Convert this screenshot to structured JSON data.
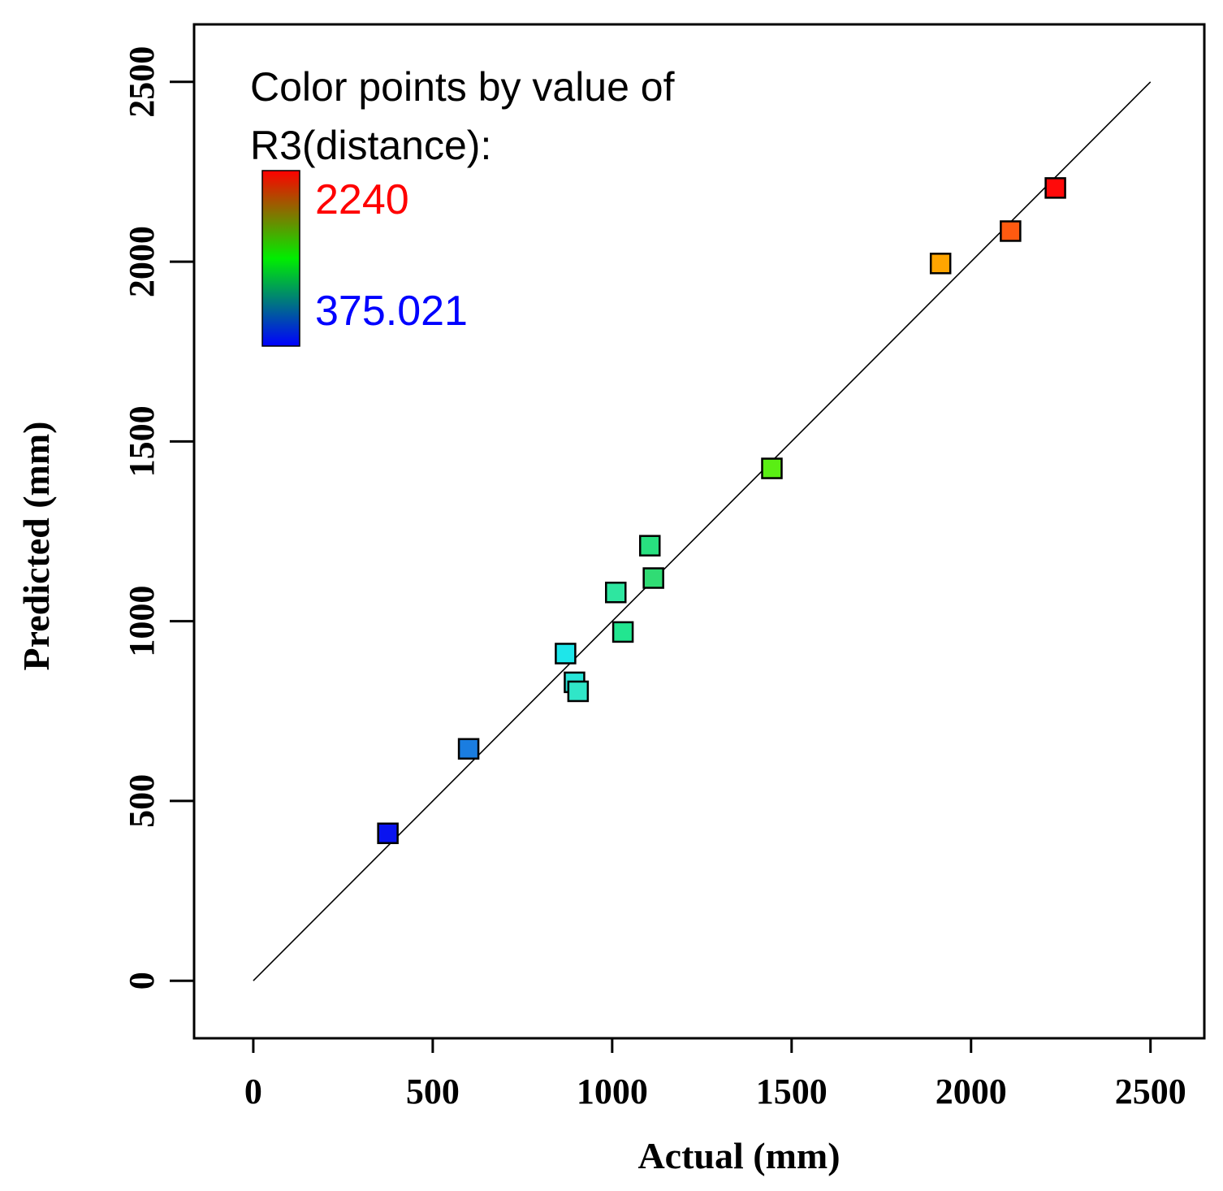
{
  "chart_data": {
    "type": "scatter",
    "xlabel": "Actual (mm)",
    "ylabel": "Predicted (mm)",
    "xlim": [
      -165,
      2650
    ],
    "ylim": [
      -160,
      2660
    ],
    "x_ticks": [
      0,
      500,
      1000,
      1500,
      2000,
      2500
    ],
    "y_ticks": [
      0,
      500,
      1000,
      1500,
      2000,
      2500
    ],
    "x_tick_labels": [
      "0",
      "500",
      "1000",
      "1500",
      "2000",
      "2500"
    ],
    "y_tick_labels": [
      "0",
      "500",
      "1000",
      "1500",
      "2000",
      "2500"
    ],
    "reference_line": {
      "from": [
        0,
        0
      ],
      "to": [
        2500,
        2500
      ]
    },
    "legend": {
      "title_line1": "Color points by value of",
      "title_line2": "R3(distance):",
      "max_label": "2240",
      "min_label": "375.021",
      "max_color": "#ff0000",
      "min_color": "#0000ff",
      "gradient_colors": [
        "#ff0000",
        "#00ee00",
        "#0000ff"
      ]
    },
    "points": [
      {
        "x": 375,
        "y": 410,
        "color": "#0a14f0"
      },
      {
        "x": 600,
        "y": 645,
        "color": "#1a7de0"
      },
      {
        "x": 870,
        "y": 910,
        "color": "#1ee6ea"
      },
      {
        "x": 895,
        "y": 830,
        "color": "#28e6d8"
      },
      {
        "x": 905,
        "y": 805,
        "color": "#30e6c8"
      },
      {
        "x": 1010,
        "y": 1080,
        "color": "#2ee6a0"
      },
      {
        "x": 1030,
        "y": 970,
        "color": "#22e690"
      },
      {
        "x": 1105,
        "y": 1210,
        "color": "#28e080"
      },
      {
        "x": 1115,
        "y": 1120,
        "color": "#30dc74"
      },
      {
        "x": 1445,
        "y": 1425,
        "color": "#5aee14"
      },
      {
        "x": 1915,
        "y": 1995,
        "color": "#ffa500"
      },
      {
        "x": 2110,
        "y": 2085,
        "color": "#ff5a10"
      },
      {
        "x": 2235,
        "y": 2205,
        "color": "#ff0a0a"
      }
    ]
  }
}
